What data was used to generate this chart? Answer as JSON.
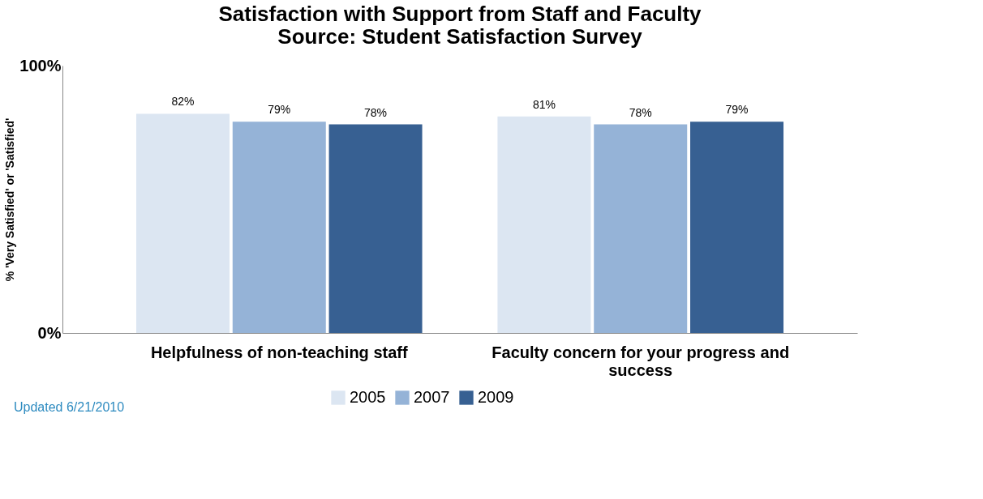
{
  "chart_data": {
    "type": "bar",
    "title": "Satisfaction with Support from Staff and Faculty",
    "subtitle": "Source: Student Satisfaction Survey",
    "ylabel": "% 'Very Satisfied' or 'Satisfied'",
    "categories": [
      "Helpfulness of non-teaching staff",
      "Faculty concern for your progress and success"
    ],
    "series": [
      {
        "name": "2005",
        "color": "#dce6f2",
        "values": [
          82,
          81
        ]
      },
      {
        "name": "2007",
        "color": "#95b3d7",
        "values": [
          79,
          78
        ]
      },
      {
        "name": "2009",
        "color": "#376092",
        "values": [
          78,
          79
        ]
      }
    ],
    "ylim": [
      0,
      100
    ],
    "yticks": [
      {
        "value": 0,
        "label": "0%"
      },
      {
        "value": 100,
        "label": "100%"
      }
    ],
    "value_labels": [
      [
        "82%",
        "81%"
      ],
      [
        "79%",
        "78%"
      ],
      [
        "78%",
        "79%"
      ]
    ],
    "grid": false,
    "legend": "bottom",
    "annotations": [
      "Updated 6/21/2010"
    ]
  }
}
